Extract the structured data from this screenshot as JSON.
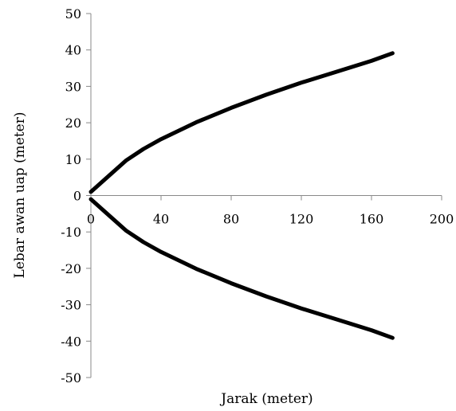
{
  "chart_data": {
    "type": "line",
    "title": "",
    "xlabel": "Jarak (meter)",
    "ylabel": "Lebar awan uap (meter)",
    "xlim": [
      0,
      200
    ],
    "ylim": [
      -50,
      50
    ],
    "x_ticks": [
      0,
      40,
      80,
      120,
      160,
      200
    ],
    "y_ticks": [
      50,
      40,
      30,
      20,
      10,
      0,
      -10,
      -20,
      -30,
      -40,
      -50
    ],
    "grid": false,
    "legend": "none",
    "series": [
      {
        "x": [
          0,
          20,
          30,
          40,
          60,
          80,
          100,
          120,
          140,
          160,
          172
        ],
        "y": [
          1,
          9.6,
          12.8,
          15.5,
          20.1,
          24.1,
          27.7,
          31.0,
          34.0,
          37.0,
          39.1
        ],
        "color": "#000000"
      },
      {
        "x": [
          0,
          20,
          30,
          40,
          60,
          80,
          100,
          120,
          140,
          160,
          172
        ],
        "y": [
          -1,
          -9.6,
          -12.8,
          -15.5,
          -20.1,
          -24.1,
          -27.7,
          -31.0,
          -34.0,
          -37.0,
          -39.1
        ],
        "color": "#000000"
      }
    ]
  }
}
